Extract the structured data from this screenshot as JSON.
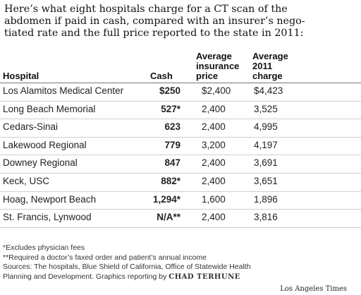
{
  "intro": {
    "line1": "Here’s what eight hospitals charge for a CT scan of the",
    "line2": "abdomen if paid in cash, compared with an insurer’s nego-",
    "line3": "tiated rate and the full price reported to the state in 2011:"
  },
  "chart_data": {
    "type": "table",
    "columns": {
      "hospital": "Hospital",
      "cash": "Cash",
      "insurance": [
        "Average",
        "insurance",
        "price"
      ],
      "charge": [
        "Average",
        "2011",
        "charge"
      ]
    },
    "rows": [
      {
        "hospital": "Los Alamitos Medical Center",
        "cash": "$250",
        "insurance": "$2,400",
        "charge": "$4,423"
      },
      {
        "hospital": "Long Beach Memorial",
        "cash": "527*",
        "insurance": "2,400",
        "charge": "3,525"
      },
      {
        "hospital": "Cedars-Sinai",
        "cash": "623",
        "insurance": "2,400",
        "charge": "4,995"
      },
      {
        "hospital": "Lakewood Regional",
        "cash": "779",
        "insurance": "3,200",
        "charge": "4,197"
      },
      {
        "hospital": "Downey Regional",
        "cash": "847",
        "insurance": "2,400",
        "charge": "3,691"
      },
      {
        "hospital": "Keck, USC",
        "cash": "882*",
        "insurance": "2,400",
        "charge": "3,651"
      },
      {
        "hospital": "Hoag, Newport Beach",
        "cash": "1,294*",
        "insurance": "1,600",
        "charge": "1,896"
      },
      {
        "hospital": "St. Francis, Lynwood",
        "cash": "N/A**",
        "insurance": "2,400",
        "charge": "3,816"
      }
    ]
  },
  "notes": {
    "note1": "*Excludes physician fees",
    "note2": "**Required a doctor’s faxed order and patient’s annual income",
    "sources_line1": "Sources: The hospitals, Blue Shield of California, Office of Statewide Health",
    "sources_line2": "Planning and Development. Graphics reporting by",
    "credit": "CHAD TERHUNE"
  },
  "source_credit": "Los Angeles Times"
}
